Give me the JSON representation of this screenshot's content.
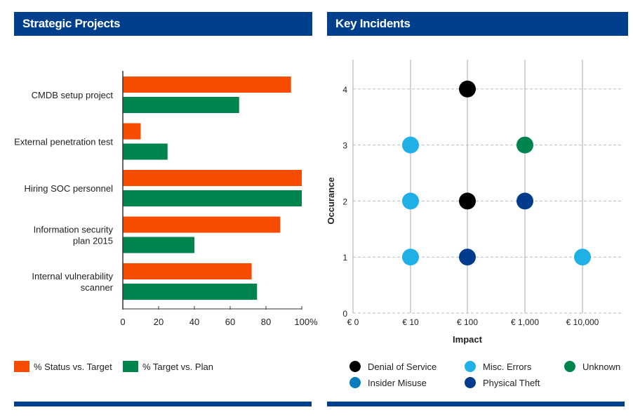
{
  "left_panel": {
    "title": "Strategic Projects"
  },
  "right_panel": {
    "title": "Key Incidents"
  },
  "chart_data": [
    {
      "type": "bar",
      "orientation": "horizontal",
      "categories": [
        "CMDB setup project",
        "External penetration test",
        "Hiring SOC personnel",
        "Information security plan 2015",
        "Internal vulnerability scanner"
      ],
      "category_lines": [
        [
          "CMDB setup project"
        ],
        [
          "External penetration test"
        ],
        [
          "Hiring SOC personnel"
        ],
        [
          "Information security",
          "plan 2015"
        ],
        [
          "Internal vulnerability",
          "scanner"
        ]
      ],
      "series": [
        {
          "name": "% Status vs. Target",
          "color": "#f74b00",
          "values": [
            94,
            10,
            100,
            88,
            72
          ]
        },
        {
          "name": "% Target vs. Plan",
          "color": "#00844e",
          "values": [
            65,
            25,
            100,
            40,
            75
          ]
        }
      ],
      "xlim": [
        0,
        100
      ],
      "xticks": [
        "0",
        "20",
        "40",
        "60",
        "80",
        "100%"
      ],
      "legend": "bottom-left"
    },
    {
      "type": "scatter",
      "xlabel": "Impact",
      "ylabel": "Occurance",
      "xcategories": [
        "€ 0",
        "€ 10",
        "€ 100",
        "€ 1,000",
        "€ 10,000"
      ],
      "ylim": [
        0,
        4
      ],
      "yticks": [
        "0",
        "1",
        "2",
        "3",
        "4"
      ],
      "grid": true,
      "legend": "bottom",
      "series": [
        {
          "name": "Denial of Service",
          "color": "#000000",
          "points": [
            [
              "€ 100",
              4
            ],
            [
              "€ 100",
              2
            ]
          ]
        },
        {
          "name": "Misc. Errors",
          "color": "#1fb0e6",
          "points": [
            [
              "€ 10",
              3
            ],
            [
              "€ 10",
              2
            ],
            [
              "€ 10",
              1
            ],
            [
              "€ 10,000",
              1
            ]
          ]
        },
        {
          "name": "Unknown",
          "color": "#00844e",
          "points": [
            [
              "€ 1,000",
              3
            ]
          ]
        },
        {
          "name": "Insider Misuse",
          "color": "#0a7bbd",
          "points": []
        },
        {
          "name": "Physical Theft",
          "color": "#003b8e",
          "points": [
            [
              "€ 1,000",
              2
            ],
            [
              "€ 100",
              1
            ]
          ]
        }
      ]
    }
  ]
}
